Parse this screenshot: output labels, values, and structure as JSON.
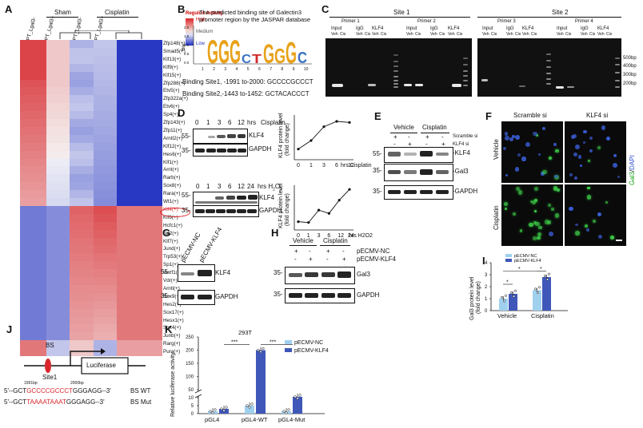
{
  "panelA": {
    "label": "A",
    "group_sham": "Sham",
    "group_cisplatin": "Cisplatin",
    "column_labels": [
      "PT_Lgal3-",
      "PT_Lgal3+",
      "PT_Lgal3-",
      "PT_Lgal3+"
    ],
    "legend_title": "Regulon Activity",
    "legend_high": "High",
    "legend_medium": "Medium",
    "legend_low": "Low",
    "highlight_color": "#d9262c",
    "high_color": "#d8262b",
    "low_color": "#1f2ec0",
    "rows": [
      "Zfp148(+)",
      "Smad5(+)",
      "Klf13(+)",
      "Klf9(+)",
      "Klf15(+)",
      "Zfp288(+)",
      "Etv5(+)",
      "Zfp322a(+)",
      "Etv6(+)",
      "Sp4(+)",
      "Zfp143(+)",
      "Zfp11(+)",
      "Arntl2(+)",
      "Klf12(+)",
      "Hes6(+)",
      "Klf1(+)",
      "Arnt(+)",
      "Rarb(+)",
      "Sox8(+)",
      "Rara(+)",
      "Wt1(+)",
      "Klf4(+)",
      "Klf6(+)",
      "Hcfc1(+)",
      "Sp2(+)",
      "Klf7(+)",
      "Jund(+)",
      "Trp53(+)",
      "Sp1(+)",
      "Vezf1(+)",
      "Vdr(+)",
      "Arntl(+)",
      "Sox9(+)",
      "Hes2(+)",
      "Sox17(+)",
      "Hesx1(+)",
      "Sox4(+)",
      "Junb(+)",
      "Rarg(+)",
      "Pura(+)"
    ],
    "highlight_row": "Klf4(+)"
  },
  "panelB": {
    "label": "B",
    "title_line1": "The predicted binding site of Galectin3",
    "title_line2": "promoter region by the JASPAR database",
    "yaxis": "Bits",
    "logo_letters": "GGGcTGGGc",
    "positions": [
      "1",
      "2",
      "3",
      "4",
      "5",
      "6",
      "7",
      "8",
      "9",
      "10"
    ],
    "y_ticks": [
      "2.0",
      "1.5",
      "1.0",
      "0.5",
      "0.0"
    ],
    "site1": "Binding Site1, -1991 to-2000:  GCCCCGCCCT",
    "site2": "Binding Site2,-1443 to-1452:  GCTACACCCT"
  },
  "panelC": {
    "label": "C",
    "site1": "Site 1",
    "site2": "Site 2",
    "primer1": "Primer 1",
    "primer2": "Primer 2",
    "primer3": "Primer 3",
    "primer4": "Primer 4",
    "input": "Input",
    "igg": "IgG",
    "klf4": "KLF4",
    "veh": "Veh",
    "cis": "Cis",
    "markers": [
      "500bp",
      "400bp",
      "300bp",
      "200bp"
    ]
  },
  "panelD": {
    "label": "D",
    "top_times": [
      "0",
      "1",
      "3",
      "6",
      "12"
    ],
    "top_unit": "hrs",
    "top_treatment": "Cisplatin",
    "bottom_times": [
      "0",
      "1",
      "3",
      "6",
      "12",
      "24"
    ],
    "bottom_unit": "hrs H",
    "bottom_unit_sub": "2",
    "bottom_unit_tail": "O",
    "bottom_unit_sub2": "2",
    "klf4": "KLF4",
    "gapdh": "GAPDH",
    "mw_55": "55-",
    "mw_35": "35-",
    "chart_ylabel": "KLF4 protein level",
    "chart_ylabel2": "(fold change)"
  },
  "chart_data": [
    {
      "type": "line",
      "x": [
        "0",
        "1",
        "3",
        "6",
        "12"
      ],
      "values": [
        1.0,
        1.8,
        3.1,
        3.6,
        3.5
      ],
      "xlabel": "hrs Cisplatin",
      "ylabel": "KLF4 protein level (fold change)"
    },
    {
      "type": "line",
      "x": [
        "0",
        "1",
        "3",
        "6",
        "12",
        "24"
      ],
      "values": [
        1.0,
        0.9,
        2.4,
        2.0,
        3.6,
        4.9
      ],
      "xlabel": "hrs H2O2",
      "ylabel": "KLF4 protein level (fold change)"
    },
    {
      "type": "bar",
      "categories": [
        "Vehicle",
        "Cisplatin"
      ],
      "series": [
        {
          "name": "pECMV-NC",
          "values": [
            1.0,
            1.7
          ]
        },
        {
          "name": "pECMV-KLF4",
          "values": [
            1.4,
            2.8
          ]
        }
      ],
      "ylabel": "Gal3 protein level (fold change)",
      "y_ticks": [
        "0",
        "1",
        "2",
        "3",
        "4"
      ],
      "significance": [
        "*",
        "*",
        "*"
      ]
    },
    {
      "type": "bar",
      "categories": [
        "pGL4",
        "pGL4-WT",
        "pGL4-Mut"
      ],
      "series": [
        {
          "name": "pECMV-NC",
          "values": [
            1.5,
            5.0,
            1.5
          ]
        },
        {
          "name": "pECMV-KLF4",
          "values": [
            3.0,
            200,
            23
          ]
        }
      ],
      "ylabel": "Relative luciferase activity",
      "y_ticks": [
        "0",
        "5",
        "10",
        "50",
        "100",
        "150",
        "200",
        "250"
      ],
      "significance": [
        "***",
        "***"
      ],
      "title": "293T"
    }
  ],
  "panelE": {
    "label": "E",
    "vehicle": "Vehicle",
    "cisplatin": "Cisplatin",
    "scramble": "Scramble si",
    "klf4si": "KLF4 si",
    "row1_signs": [
      "+",
      "-",
      "+",
      "-"
    ],
    "row2_signs": [
      "-",
      "+",
      "-",
      "+"
    ],
    "klf4": "-KLF4",
    "gal3": "-Gal3",
    "gapdh": "-GAPDH",
    "mw_55": "55-",
    "mw_35a": "35-",
    "mw_35b": "35-"
  },
  "panelF": {
    "label": "F",
    "col1": "Scramble si",
    "col2": "KLF4 si",
    "row1": "Vehicle",
    "row2": "Cisplatin",
    "stain": "Gal3",
    "stain_sep": "/",
    "dapi": "DAPI"
  },
  "panelG": {
    "label": "G",
    "col1": "pECMV-NC",
    "col2": "pECMV-KLF4",
    "klf4": "KLF4",
    "gapdh": "GAPDH",
    "mw_55": "55-",
    "mw_35": "35-"
  },
  "panelH": {
    "label": "H",
    "vehicle": "Vehicle",
    "cisplatin": "Cisplatin",
    "nc": "pECMV-NC",
    "klf4": "pECMV-KLF4",
    "row1_signs": [
      "+",
      "-",
      "+",
      "-"
    ],
    "row2_signs": [
      "-",
      "+",
      "-",
      "+"
    ],
    "gal3": "Gal3",
    "gapdh": "GAPDH",
    "mw_35a": "35-",
    "mw_35b": "35-"
  },
  "panelI": {
    "label": "I",
    "legend_nc": "pECMV-NC",
    "legend_klf4": "pECMV-KLF4",
    "ylabel1": "Gal3 protein level",
    "ylabel2": "(fold change)",
    "cat1": "Vehicle",
    "cat2": "Cisplatin",
    "nc_color": "#9fd0ee",
    "klf4_color": "#3f57b8"
  },
  "panelJ": {
    "label": "J",
    "bs": "BS",
    "site": "Site1",
    "luciferase": "Luciferase",
    "bp1": "1991bp",
    "bp2": "2000bp",
    "wt_prefix": "5'--GCT",
    "wt_site": "GCCCCGCCCT",
    "wt_suffix": "GGGAGG--3'",
    "wt_label": "BS WT",
    "mut_prefix": "5'--GCT",
    "mut_site": "TAAAATAAAT",
    "mut_suffix": "GGGAGG--3'",
    "mut_label": "BS Mut"
  },
  "panelK": {
    "label": "K",
    "cell_line": "293T",
    "legend_nc": "pECMV-NC",
    "legend_klf4": "pECMV-KLF4",
    "ylabel": "Relative luciferase activity",
    "cats": [
      "pGL4",
      "pGL4-WT",
      "pGL4-Mut"
    ],
    "sig1": "***",
    "sig2": "***",
    "y_ticks": [
      "0",
      "5",
      "10",
      "50",
      "100",
      "150",
      "200",
      "250"
    ]
  }
}
